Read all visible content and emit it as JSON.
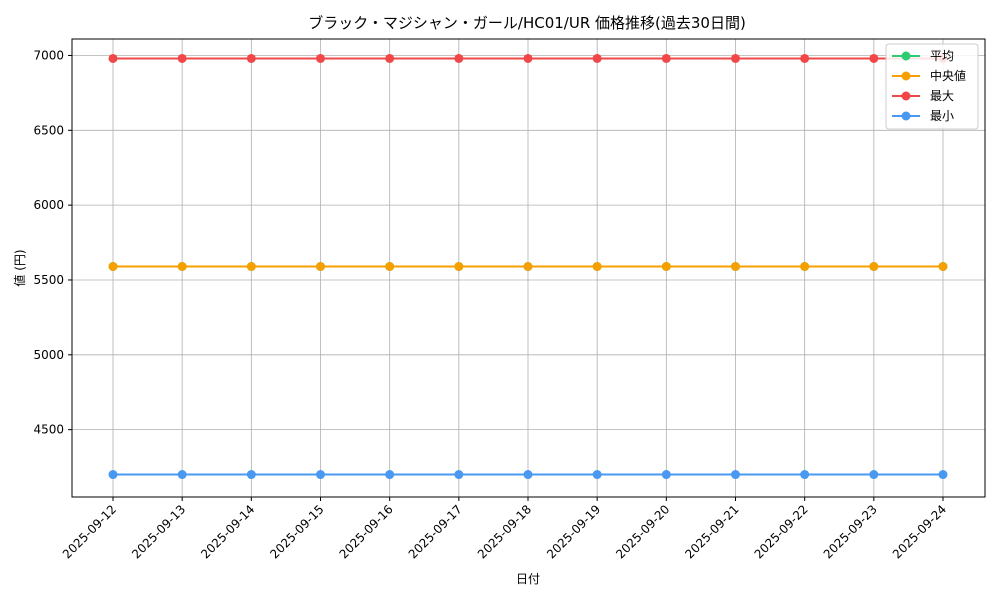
{
  "chart_data": {
    "type": "line",
    "title": "ブラック・マジシャン・ガール/HC01/UR 価格推移(過去30日間)",
    "xlabel": "日付",
    "ylabel": "値 (円)",
    "x": [
      "2025-09-12",
      "2025-09-13",
      "2025-09-14",
      "2025-09-15",
      "2025-09-16",
      "2025-09-17",
      "2025-09-18",
      "2025-09-19",
      "2025-09-20",
      "2025-09-21",
      "2025-09-22",
      "2025-09-23",
      "2025-09-24"
    ],
    "ylim": [
      4050,
      7110
    ],
    "yticks": [
      4500,
      5000,
      5500,
      6000,
      6500,
      7000
    ],
    "grid": true,
    "legend": "top-right",
    "series": [
      {
        "name": "平均",
        "color": "#2ecc71",
        "values": [
          5590,
          5590,
          5590,
          5590,
          5590,
          5590,
          5590,
          5590,
          5590,
          5590,
          5590,
          5590,
          5590
        ]
      },
      {
        "name": "中央値",
        "color": "#f5a000",
        "values": [
          5590,
          5590,
          5590,
          5590,
          5590,
          5590,
          5590,
          5590,
          5590,
          5590,
          5590,
          5590,
          5590
        ]
      },
      {
        "name": "最大",
        "color": "#f04848",
        "values": [
          6980,
          6980,
          6980,
          6980,
          6980,
          6980,
          6980,
          6980,
          6980,
          6980,
          6980,
          6980,
          6980
        ]
      },
      {
        "name": "最小",
        "color": "#4a98f0",
        "values": [
          4200,
          4200,
          4200,
          4200,
          4200,
          4200,
          4200,
          4200,
          4200,
          4200,
          4200,
          4200,
          4200
        ]
      }
    ]
  }
}
